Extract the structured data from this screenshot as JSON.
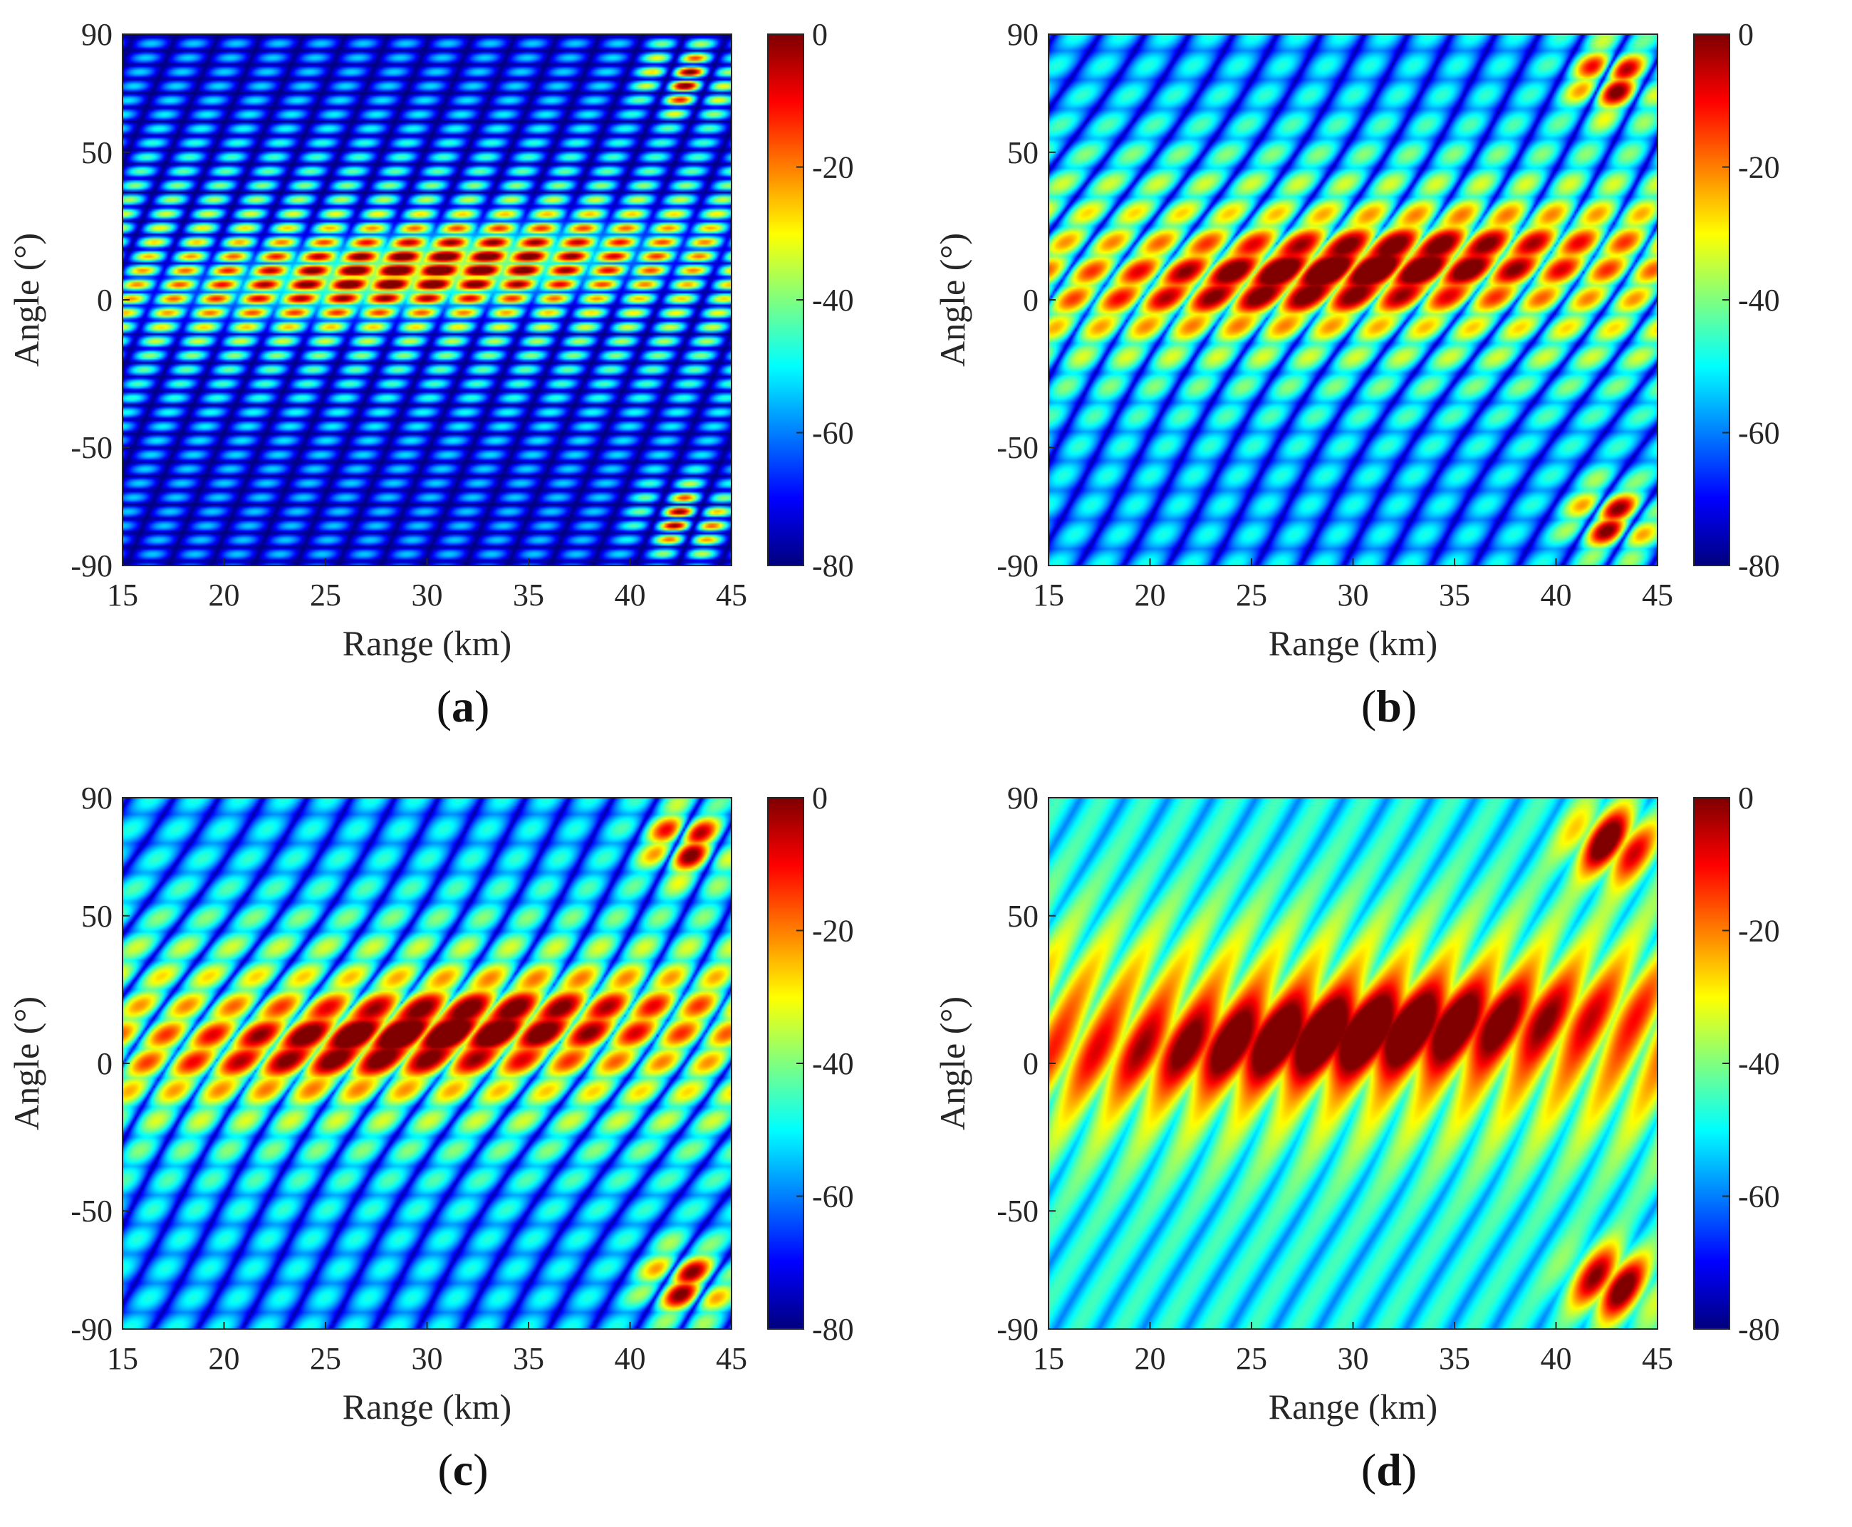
{
  "chart_data": [
    {
      "type": "heatmap",
      "caption_letter": "a",
      "title": "",
      "xlabel": "Range (km)",
      "ylabel": "Angle (°)",
      "xlim": [
        15,
        45
      ],
      "ylim": [
        -90,
        90
      ],
      "xticks": [
        "15",
        "20",
        "25",
        "30",
        "35",
        "40",
        "45"
      ],
      "yticks": [
        "90",
        "50",
        "0",
        "-50",
        "-90"
      ],
      "ytick_values": [
        90,
        50,
        0,
        -50,
        -90
      ],
      "colorbar": {
        "range": [
          -80,
          0
        ],
        "ticks": [
          "0",
          "-20",
          "-40",
          "-60",
          "-80"
        ],
        "tick_values": [
          0,
          -20,
          -40,
          -60,
          -80
        ],
        "colormap": "jet"
      },
      "peak": {
        "range_km": 30,
        "angle_deg": 10,
        "value_db": 0
      },
      "variant": "grid"
    },
    {
      "type": "heatmap",
      "caption_letter": "b",
      "title": "",
      "xlabel": "Range (km)",
      "ylabel": "Angle (°)",
      "xlim": [
        15,
        45
      ],
      "ylim": [
        -90,
        90
      ],
      "xticks": [
        "15",
        "20",
        "25",
        "30",
        "35",
        "40",
        "45"
      ],
      "yticks": [
        "90",
        "50",
        "0",
        "-50",
        "-90"
      ],
      "ytick_values": [
        90,
        50,
        0,
        -50,
        -90
      ],
      "colorbar": {
        "range": [
          -80,
          0
        ],
        "ticks": [
          "0",
          "-20",
          "-40",
          "-60",
          "-80"
        ],
        "tick_values": [
          0,
          -20,
          -40,
          -60,
          -80
        ],
        "colormap": "jet"
      },
      "peak": {
        "range_km": 30,
        "angle_deg": 10,
        "value_db": 0
      },
      "variant": "warped"
    },
    {
      "type": "heatmap",
      "caption_letter": "c",
      "title": "",
      "xlabel": "Range (km)",
      "ylabel": "Angle (°)",
      "xlim": [
        15,
        45
      ],
      "ylim": [
        -90,
        90
      ],
      "xticks": [
        "15",
        "20",
        "25",
        "30",
        "35",
        "40",
        "45"
      ],
      "yticks": [
        "90",
        "50",
        "0",
        "-50",
        "-90"
      ],
      "ytick_values": [
        90,
        50,
        0,
        -50,
        -90
      ],
      "colorbar": {
        "range": [
          -80,
          0
        ],
        "ticks": [
          "0",
          "-20",
          "-40",
          "-60",
          "-80"
        ],
        "tick_values": [
          0,
          -20,
          -40,
          -60,
          -80
        ],
        "colormap": "jet"
      },
      "peak": {
        "range_km": 30,
        "angle_deg": 10,
        "value_db": 0
      },
      "variant": "warped"
    },
    {
      "type": "heatmap",
      "caption_letter": "d",
      "title": "",
      "xlabel": "Range (km)",
      "ylabel": "Angle (°)",
      "xlim": [
        15,
        45
      ],
      "ylim": [
        -90,
        90
      ],
      "xticks": [
        "15",
        "20",
        "25",
        "30",
        "35",
        "40",
        "45"
      ],
      "yticks": [
        "90",
        "50",
        "0",
        "-50",
        "-90"
      ],
      "ytick_values": [
        90,
        50,
        0,
        -50,
        -90
      ],
      "colorbar": {
        "range": [
          -80,
          0
        ],
        "ticks": [
          "0",
          "-20",
          "-40",
          "-60",
          "-80"
        ],
        "tick_values": [
          0,
          -20,
          -40,
          -60,
          -80
        ],
        "colormap": "jet"
      },
      "peak": {
        "range_km": 30,
        "angle_deg": 10,
        "value_db": 0
      },
      "variant": "smooth"
    }
  ]
}
